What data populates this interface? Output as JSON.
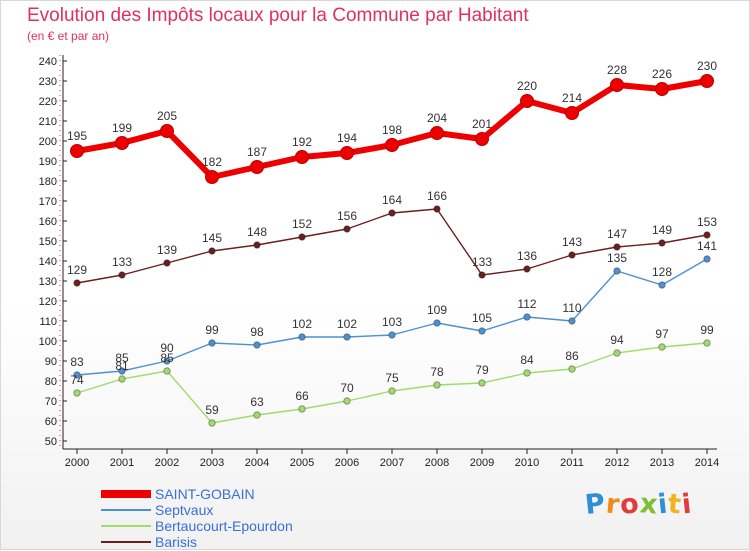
{
  "chart_data": {
    "type": "line",
    "title": "Evolution des Impôts locaux pour la Commune par Habitant",
    "subtitle": "(en € et par an)",
    "xlabel": "",
    "ylabel": "",
    "x": [
      "2000",
      "2001",
      "2002",
      "2003",
      "2004",
      "2005",
      "2006",
      "2007",
      "2008",
      "2009",
      "2010",
      "2011",
      "2012",
      "2013",
      "2014"
    ],
    "ylim": [
      50,
      240
    ],
    "ytick_step": 10,
    "grid": false,
    "legend_position": "bottom-left",
    "series": [
      {
        "name": "SAINT-GOBAIN",
        "color": "#ee0000",
        "values": [
          195,
          199,
          205,
          182,
          187,
          192,
          194,
          198,
          204,
          201,
          220,
          214,
          228,
          226,
          230
        ]
      },
      {
        "name": "Septvaux",
        "color": "#4f90d0",
        "values": [
          83,
          85,
          90,
          99,
          98,
          102,
          102,
          103,
          109,
          105,
          112,
          110,
          135,
          128,
          141
        ]
      },
      {
        "name": "Bertaucourt-Epourdon",
        "color": "#9fdc6c",
        "values": [
          74,
          81,
          85,
          59,
          63,
          66,
          70,
          75,
          78,
          79,
          84,
          86,
          94,
          97,
          99
        ]
      },
      {
        "name": "Barisis",
        "color": "#6b1f1f",
        "values": [
          129,
          133,
          139,
          145,
          148,
          152,
          156,
          164,
          166,
          133,
          136,
          143,
          147,
          149,
          153
        ]
      }
    ]
  },
  "logo": {
    "letters": [
      "P",
      "r",
      "o",
      "x",
      "i",
      "t",
      "i"
    ],
    "colors": [
      "#2f8fd6",
      "#f08a1c",
      "#e23b3b",
      "#7cbf33",
      "#2f8fd6",
      "#f0b31c",
      "#e23b3b"
    ]
  }
}
